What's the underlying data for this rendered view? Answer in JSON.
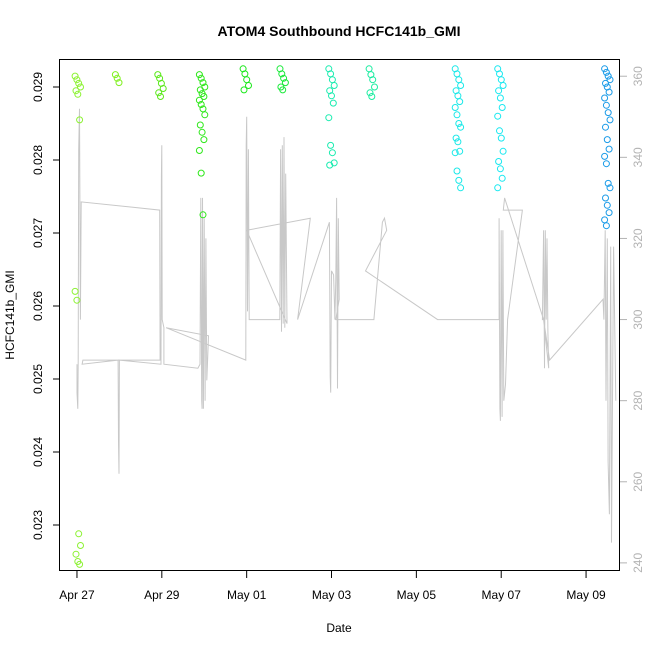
{
  "chart_data": {
    "type": "scatter",
    "title": "ATOM4 Southbound HCFC141b_GMI",
    "xlabel": "Date",
    "ylabel": "HCFC141b_GMI",
    "x_ticks": [
      "Apr 27",
      "Apr 29",
      "May 01",
      "May 03",
      "May 05",
      "May 07",
      "May 09"
    ],
    "x_range_days": [
      -0.4,
      12.8
    ],
    "y_ticks": [
      0.023,
      0.024,
      0.025,
      0.026,
      0.027,
      0.028,
      0.029
    ],
    "ylim": [
      0.02237,
      0.02937
    ],
    "y2_ticks": [
      240,
      260,
      280,
      300,
      320,
      340,
      360
    ],
    "y2lim": [
      238,
      364
    ],
    "grid": false,
    "series": [
      {
        "legend": false,
        "marker": "open-circle",
        "clusters": [
          {
            "day": 0.02,
            "color": "#8cf232",
            "values": [
              0.02915,
              0.0291,
              0.02905,
              0.029,
              0.02895,
              0.0289,
              0.02855,
              0.0262,
              0.02608,
              0.02288,
              0.02272,
              0.0226,
              0.0225,
              0.02246
            ]
          },
          {
            "day": 0.97,
            "color": "#80f020",
            "values": [
              0.02917,
              0.02912,
              0.02906
            ]
          },
          {
            "day": 1.97,
            "color": "#5ae81a",
            "values": [
              0.02917,
              0.02912,
              0.02905,
              0.02898,
              0.02892,
              0.02887
            ]
          },
          {
            "day": 2.95,
            "color": "#2ee81a",
            "values": [
              0.02917,
              0.02912,
              0.02906,
              0.029,
              0.02896,
              0.02891,
              0.02887,
              0.02882,
              0.02876,
              0.0287,
              0.02862,
              0.02848,
              0.02838,
              0.02828,
              0.02813,
              0.02782,
              0.02725
            ]
          },
          {
            "day": 3.98,
            "color": "#1ae81a",
            "values": [
              0.02925,
              0.02918,
              0.0291,
              0.02902,
              0.02896
            ]
          },
          {
            "day": 4.85,
            "color": "#1aea3a",
            "values": [
              0.02925,
              0.02918,
              0.02912,
              0.02906,
              0.029,
              0.02896
            ]
          },
          {
            "day": 6.0,
            "color": "#1aecb0",
            "values": [
              0.02925,
              0.02918,
              0.0291,
              0.02902,
              0.02895,
              0.02888,
              0.02878,
              0.02858,
              0.0282,
              0.0281,
              0.02796,
              0.02793
            ]
          },
          {
            "day": 6.95,
            "color": "#1aeca0",
            "values": [
              0.02925,
              0.02917,
              0.0291,
              0.029,
              0.02892,
              0.02887
            ]
          },
          {
            "day": 8.98,
            "color": "#1ae8e8",
            "values": [
              0.02925,
              0.02918,
              0.0291,
              0.02902,
              0.02895,
              0.02888,
              0.0288,
              0.02872,
              0.02862,
              0.0285,
              0.02845,
              0.0283,
              0.02825,
              0.02812,
              0.0281,
              0.02785,
              0.02772,
              0.02762
            ]
          },
          {
            "day": 9.98,
            "color": "#1ae8f0",
            "values": [
              0.02925,
              0.02918,
              0.0291,
              0.02902,
              0.02895,
              0.02885,
              0.02872,
              0.0286,
              0.0284,
              0.0283,
              0.02812,
              0.02798,
              0.02788,
              0.02775,
              0.02762
            ]
          },
          {
            "day": 12.5,
            "color": "#1a9be8",
            "values": [
              0.02925,
              0.0292,
              0.02915,
              0.0291,
              0.02905,
              0.029,
              0.02893,
              0.02885,
              0.02875,
              0.02865,
              0.02855,
              0.02845,
              0.02828,
              0.02815,
              0.02805,
              0.02795,
              0.02768,
              0.02762,
              0.02748,
              0.02738,
              0.02728,
              0.02718,
              0.0271
            ]
          }
        ]
      },
      {
        "legend": false,
        "axis": "right",
        "color": "#c8c8c8",
        "line": [
          [
            0.0,
            289
          ],
          [
            0.0,
            282
          ],
          [
            0.02,
            278
          ],
          [
            0.03,
            290
          ],
          [
            0.04,
            342
          ],
          [
            0.06,
            352
          ],
          [
            0.08,
            300
          ],
          [
            0.1,
            329
          ],
          [
            1.95,
            327
          ],
          [
            1.96,
            290
          ],
          [
            0.14,
            290
          ],
          [
            0.12,
            289
          ],
          [
            0.97,
            290
          ],
          [
            0.98,
            270
          ],
          [
            0.99,
            262
          ],
          [
            1.0,
            290
          ],
          [
            1.98,
            289
          ],
          [
            1.99,
            335
          ],
          [
            2.0,
            343
          ],
          [
            2.01,
            300
          ],
          [
            2.05,
            298
          ],
          [
            2.05,
            289
          ],
          [
            2.85,
            288
          ],
          [
            2.9,
            289
          ],
          [
            2.92,
            330
          ],
          [
            2.94,
            280
          ],
          [
            2.95,
            278
          ],
          [
            2.96,
            330
          ],
          [
            2.98,
            278
          ],
          [
            3.0,
            325
          ],
          [
            3.02,
            280
          ],
          [
            3.04,
            320
          ],
          [
            3.06,
            285
          ],
          [
            3.08,
            290
          ],
          [
            3.1,
            296
          ],
          [
            2.1,
            298
          ],
          [
            3.98,
            290
          ],
          [
            3.99,
            343
          ],
          [
            4.0,
            350
          ],
          [
            4.02,
            302
          ],
          [
            4.04,
            342
          ],
          [
            4.06,
            300
          ],
          [
            4.78,
            300
          ],
          [
            4.8,
            342
          ],
          [
            4.82,
            297
          ],
          [
            4.84,
            343
          ],
          [
            4.86,
            299
          ],
          [
            4.88,
            345
          ],
          [
            4.9,
            298
          ],
          [
            4.92,
            336
          ],
          [
            4.95,
            299
          ],
          [
            4.0,
            322
          ],
          [
            5.5,
            325
          ],
          [
            5.2,
            300
          ],
          [
            5.95,
            324
          ],
          [
            5.97,
            286
          ],
          [
            5.98,
            282
          ],
          [
            6.0,
            312
          ],
          [
            6.05,
            311
          ],
          [
            6.08,
            300
          ],
          [
            6.1,
            310
          ],
          [
            6.12,
            330
          ],
          [
            6.14,
            283
          ],
          [
            6.16,
            325
          ],
          [
            6.18,
            305
          ],
          [
            6.1,
            300
          ],
          [
            7.0,
            300
          ],
          [
            7.2,
            324
          ],
          [
            7.25,
            325
          ],
          [
            7.3,
            322
          ],
          [
            6.8,
            312
          ],
          [
            8.5,
            300
          ],
          [
            9.95,
            300
          ],
          [
            9.95,
            325
          ],
          [
            9.97,
            278
          ],
          [
            9.98,
            275
          ],
          [
            10.0,
            322
          ],
          [
            10.02,
            276
          ],
          [
            10.04,
            322
          ],
          [
            10.06,
            280
          ],
          [
            10.1,
            284
          ],
          [
            10.15,
            300
          ],
          [
            10.5,
            327
          ],
          [
            10.05,
            327
          ],
          [
            10.08,
            330
          ],
          [
            11.0,
            300
          ],
          [
            10.97,
            300
          ],
          [
            11.0,
            322
          ],
          [
            11.02,
            288
          ],
          [
            11.04,
            322
          ],
          [
            11.06,
            300
          ],
          [
            11.08,
            320
          ],
          [
            11.1,
            297
          ],
          [
            11.12,
            288
          ],
          [
            11.0,
            300
          ],
          [
            11.14,
            290
          ],
          [
            12.4,
            305
          ],
          [
            12.42,
            300
          ],
          [
            12.45,
            322
          ],
          [
            12.47,
            280
          ],
          [
            12.5,
            320
          ],
          [
            12.52,
            265
          ],
          [
            12.55,
            252
          ],
          [
            12.58,
            318
          ],
          [
            12.6,
            245
          ],
          [
            12.65,
            318
          ],
          [
            12.7,
            280
          ]
        ]
      }
    ]
  }
}
